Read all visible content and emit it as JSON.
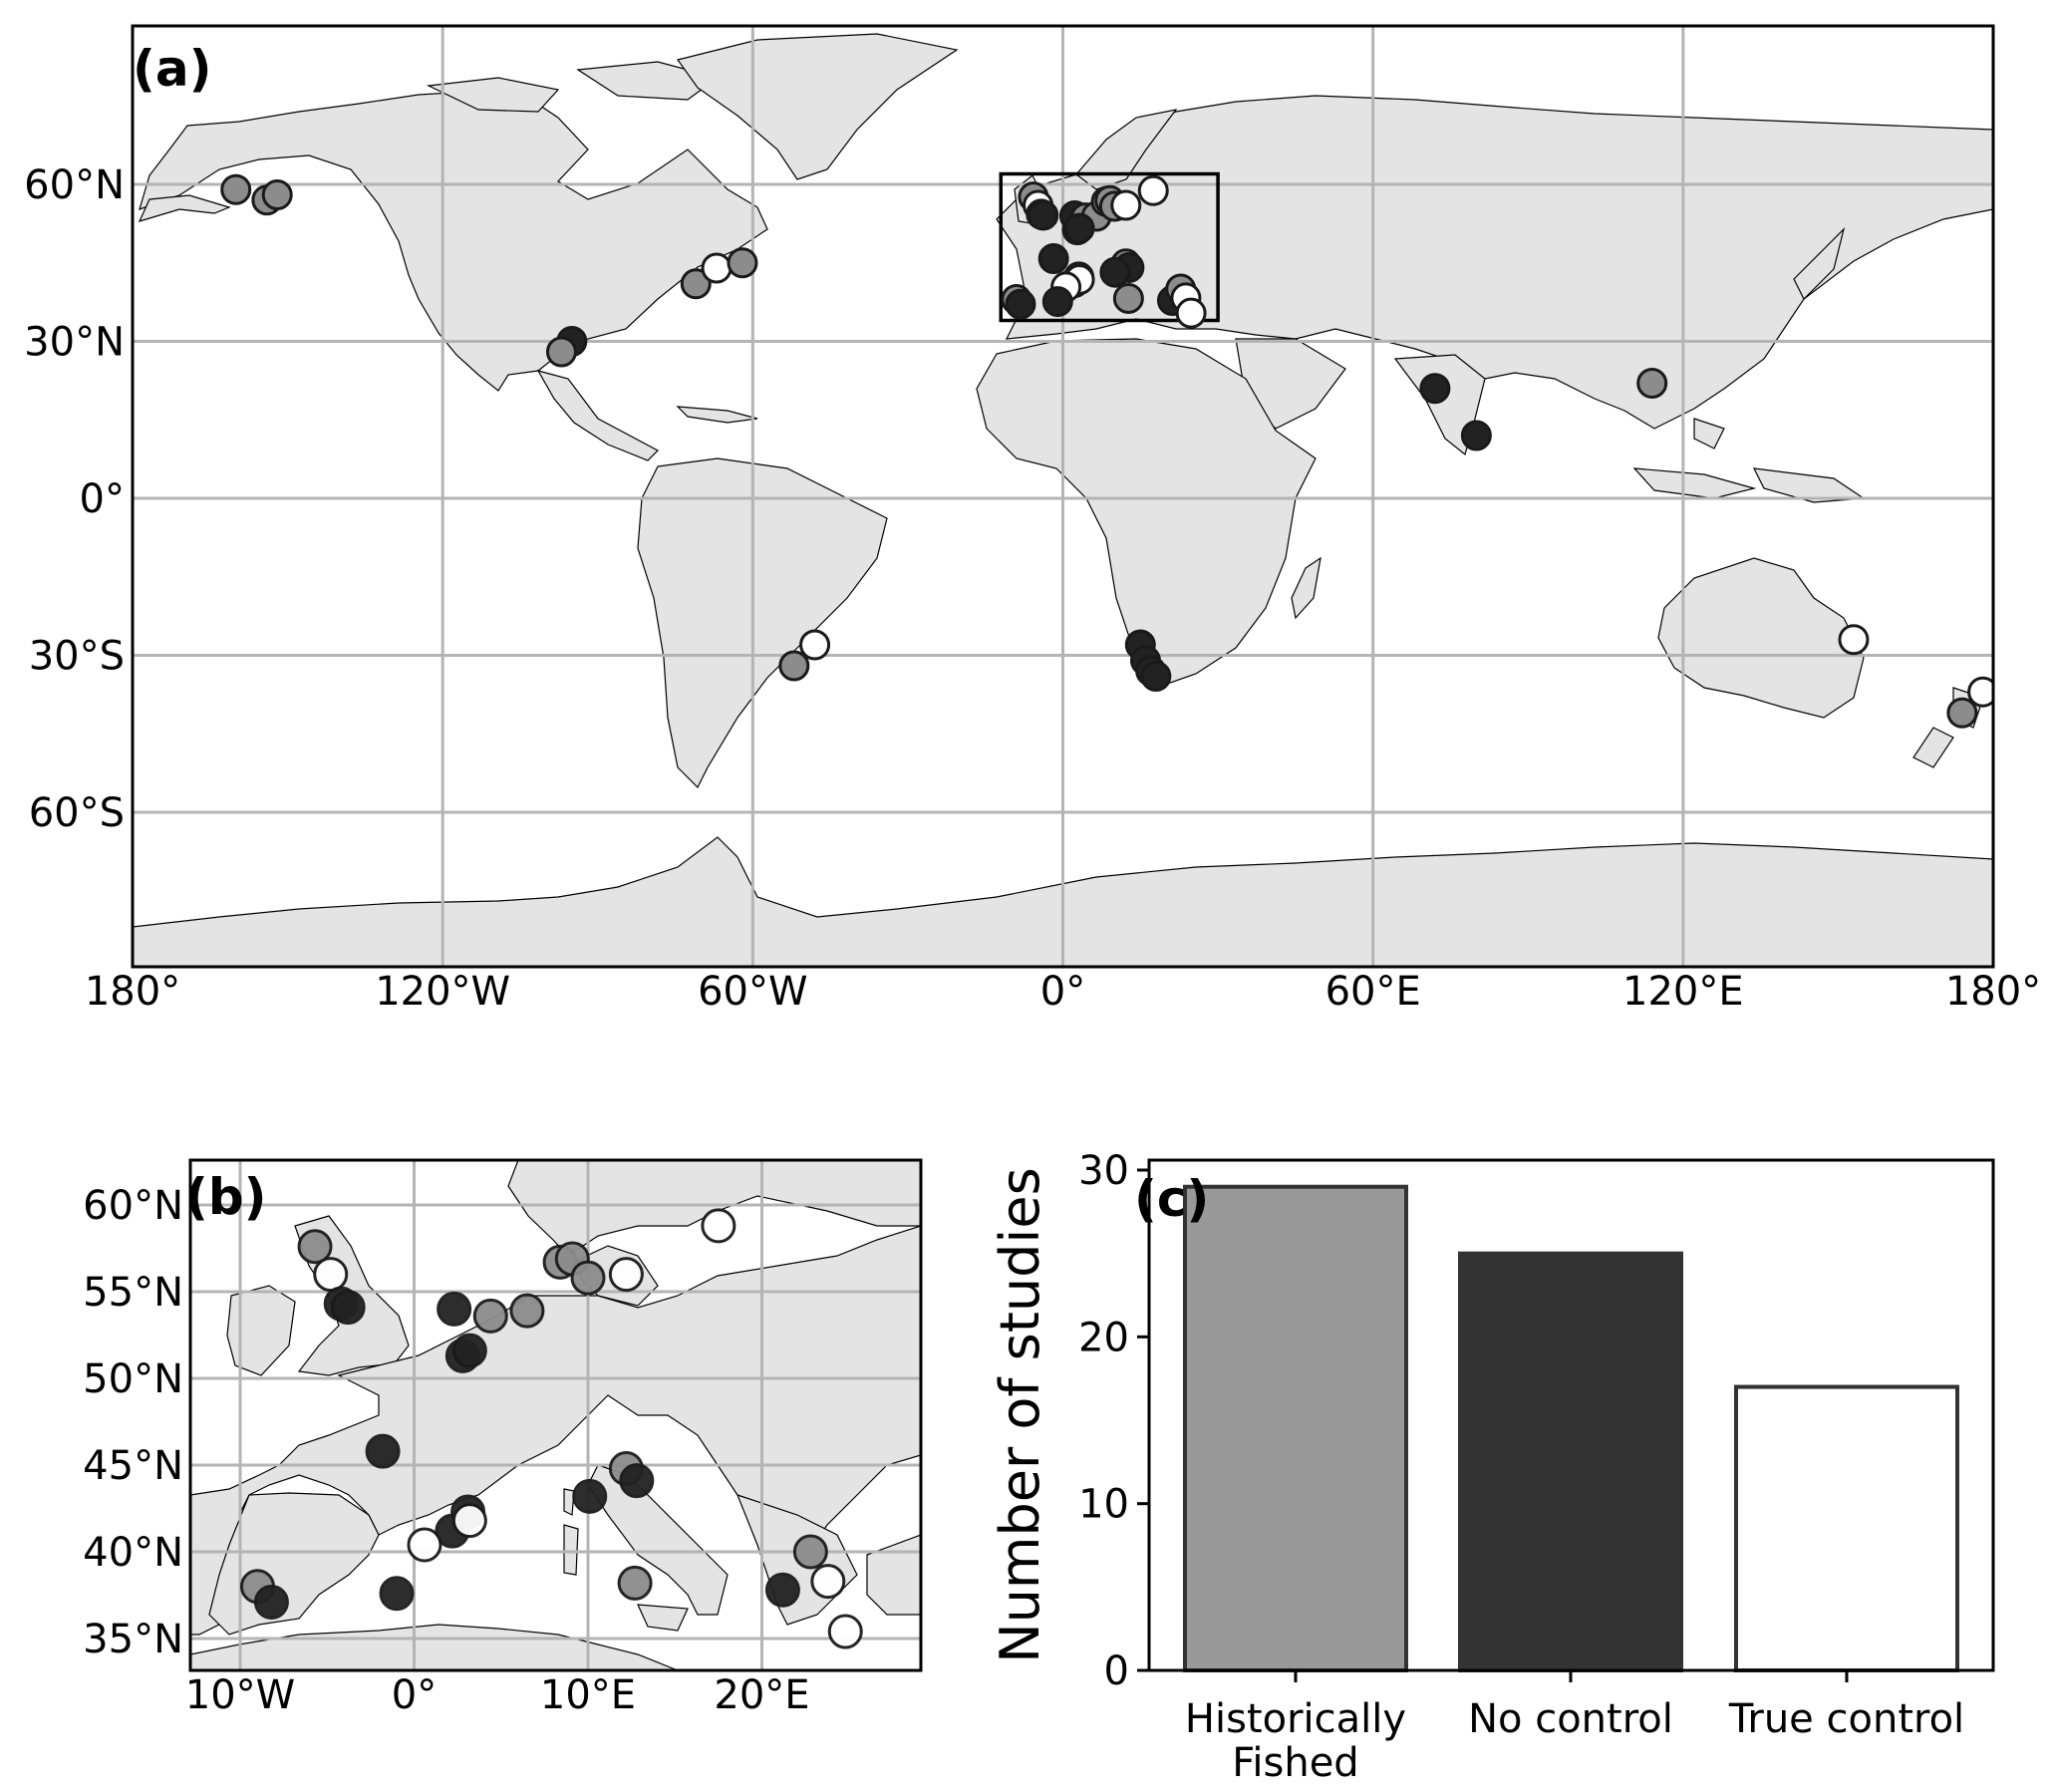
{
  "colors": {
    "Historically Fished": "#8c8c8c",
    "No control": "#222222",
    "True control": "#ffffff",
    "land": "#e4e4e4",
    "grid": "#b4b4b4"
  },
  "panel_a": {
    "label": "(a)",
    "lon_ticks": [
      "180°",
      "120°W",
      "60°W",
      "0°",
      "60°E",
      "120°E",
      "180°"
    ],
    "lat_ticks": [
      "60°N",
      "30°N",
      "0°",
      "30°S",
      "60°S"
    ],
    "inset_box": {
      "lon_min": -12,
      "lon_max": 30,
      "lat_min": 34,
      "lat_max": 62
    }
  },
  "panel_b": {
    "label": "(b)",
    "lon_ticks": [
      "10°W",
      "0°",
      "10°E",
      "20°E"
    ],
    "lat_ticks": [
      "60°N",
      "55°N",
      "50°N",
      "45°N",
      "40°N",
      "35°N"
    ]
  },
  "panel_c": {
    "label": "(c)",
    "ylabel": "Number of studies",
    "y_ticks": [
      "0",
      "10",
      "20",
      "30"
    ]
  },
  "chart_data": {
    "type": "bar",
    "categories": [
      "Historically\nFished",
      "No control",
      "True control"
    ],
    "values": [
      29,
      25,
      17
    ],
    "ylabel": "Number of studies",
    "ylim": [
      0,
      30
    ],
    "colors": [
      "#999999",
      "#333333",
      "#ffffff"
    ]
  },
  "sites": [
    {
      "lon": -160,
      "lat": 59,
      "cat": "Historically Fished"
    },
    {
      "lon": -154,
      "lat": 57,
      "cat": "Historically Fished"
    },
    {
      "lon": -152,
      "lat": 58,
      "cat": "Historically Fished"
    },
    {
      "lon": -71,
      "lat": 41,
      "cat": "Historically Fished"
    },
    {
      "lon": -67,
      "lat": 44,
      "cat": "True control"
    },
    {
      "lon": -62,
      "lat": 45,
      "cat": "Historically Fished"
    },
    {
      "lon": -95,
      "lat": 30,
      "cat": "No control"
    },
    {
      "lon": -97,
      "lat": 28,
      "cat": "Historically Fished"
    },
    {
      "lon": -48,
      "lat": -28,
      "cat": "True control"
    },
    {
      "lon": -52,
      "lat": -32,
      "cat": "Historically Fished"
    },
    {
      "lon": 15,
      "lat": -28,
      "cat": "No control"
    },
    {
      "lon": 16,
      "lat": -31,
      "cat": "No control"
    },
    {
      "lon": 17,
      "lat": -33,
      "cat": "No control"
    },
    {
      "lon": 18,
      "lat": -34,
      "cat": "No control"
    },
    {
      "lon": 72,
      "lat": 21,
      "cat": "No control"
    },
    {
      "lon": 80,
      "lat": 12,
      "cat": "No control"
    },
    {
      "lon": 114,
      "lat": 22,
      "cat": "Historically Fished"
    },
    {
      "lon": 153,
      "lat": -27,
      "cat": "True control"
    },
    {
      "lon": 178,
      "lat": -37,
      "cat": "True control"
    },
    {
      "lon": 174,
      "lat": -41,
      "cat": "Historically Fished"
    },
    {
      "lon": -5.7,
      "lat": 57.6,
      "cat": "Historically Fished"
    },
    {
      "lon": -4.8,
      "lat": 56.0,
      "cat": "True control"
    },
    {
      "lon": -4.2,
      "lat": 54.3,
      "cat": "No control"
    },
    {
      "lon": -3.8,
      "lat": 54.1,
      "cat": "No control"
    },
    {
      "lon": 2.3,
      "lat": 54.0,
      "cat": "No control"
    },
    {
      "lon": 4.4,
      "lat": 53.6,
      "cat": "Historically Fished"
    },
    {
      "lon": 6.5,
      "lat": 53.9,
      "cat": "Historically Fished"
    },
    {
      "lon": 2.8,
      "lat": 51.3,
      "cat": "No control"
    },
    {
      "lon": 3.2,
      "lat": 51.6,
      "cat": "No control"
    },
    {
      "lon": 8.4,
      "lat": 56.7,
      "cat": "Historically Fished"
    },
    {
      "lon": 9.1,
      "lat": 56.9,
      "cat": "Historically Fished"
    },
    {
      "lon": 10.0,
      "lat": 55.8,
      "cat": "Historically Fished"
    },
    {
      "lon": 12.2,
      "lat": 56.0,
      "cat": "True control"
    },
    {
      "lon": 17.5,
      "lat": 58.8,
      "cat": "True control"
    },
    {
      "lon": -1.8,
      "lat": 45.8,
      "cat": "No control"
    },
    {
      "lon": 12.2,
      "lat": 44.8,
      "cat": "Historically Fished"
    },
    {
      "lon": 12.8,
      "lat": 44.1,
      "cat": "No control"
    },
    {
      "lon": 10.1,
      "lat": 43.2,
      "cat": "No control"
    },
    {
      "lon": 3.1,
      "lat": 42.3,
      "cat": "No control"
    },
    {
      "lon": 2.2,
      "lat": 41.2,
      "cat": "No control"
    },
    {
      "lon": 3.2,
      "lat": 41.8,
      "cat": "True control"
    },
    {
      "lon": 0.6,
      "lat": 40.4,
      "cat": "True control"
    },
    {
      "lon": -9.0,
      "lat": 38.0,
      "cat": "Historically Fished"
    },
    {
      "lon": -8.2,
      "lat": 37.1,
      "cat": "No control"
    },
    {
      "lon": -1.0,
      "lat": 37.6,
      "cat": "No control"
    },
    {
      "lon": 12.7,
      "lat": 38.2,
      "cat": "Historically Fished"
    },
    {
      "lon": 21.2,
      "lat": 37.8,
      "cat": "No control"
    },
    {
      "lon": 22.8,
      "lat": 40.0,
      "cat": "Historically Fished"
    },
    {
      "lon": 23.8,
      "lat": 38.3,
      "cat": "True control"
    },
    {
      "lon": 24.8,
      "lat": 35.4,
      "cat": "True control"
    }
  ]
}
